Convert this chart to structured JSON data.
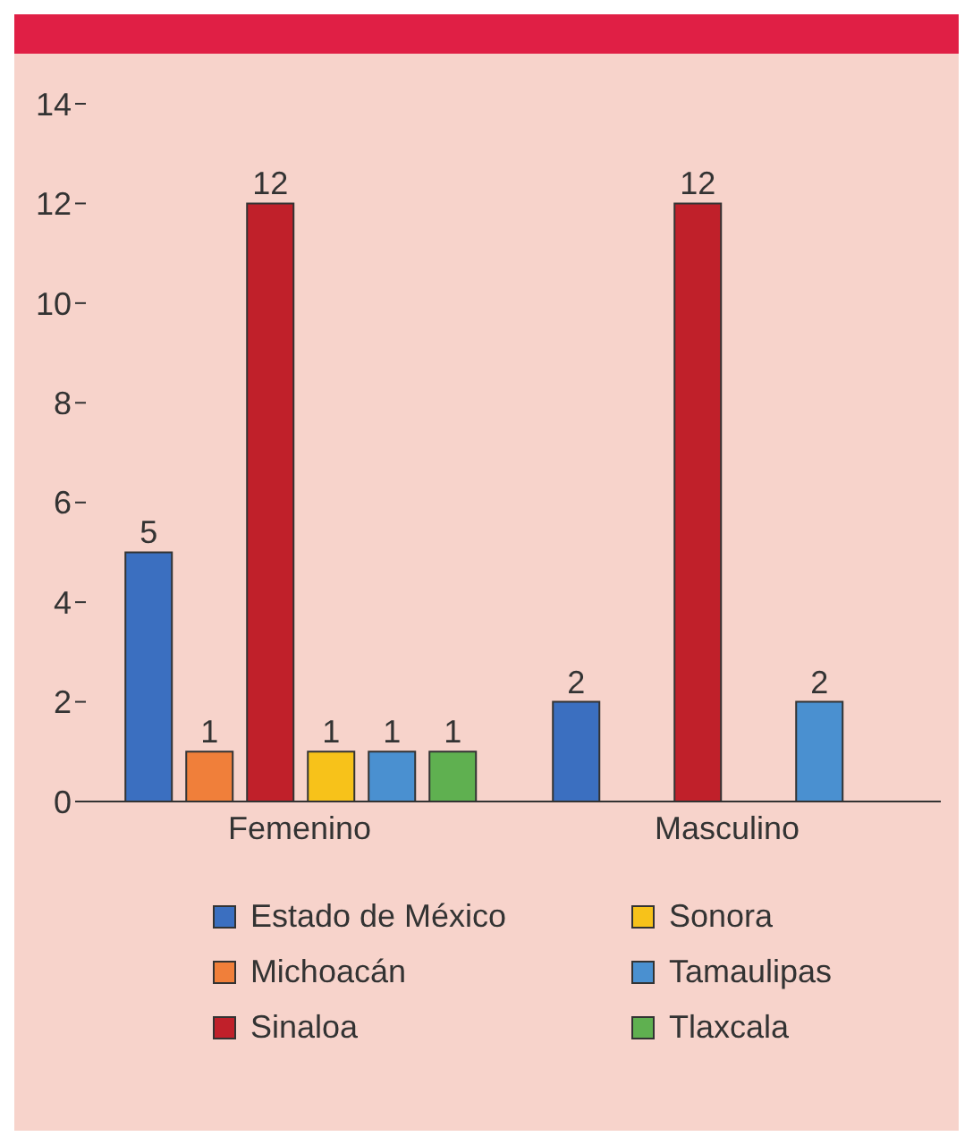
{
  "chart_data": {
    "type": "bar",
    "categories": [
      "Femenino",
      "Masculino"
    ],
    "series": [
      {
        "name": "Estado de México",
        "color": "#3b6fc0",
        "values": [
          5,
          2
        ]
      },
      {
        "name": "Michoacán",
        "color": "#f07f3a",
        "values": [
          1,
          null
        ]
      },
      {
        "name": "Sinaloa",
        "color": "#c0202a",
        "values": [
          12,
          12
        ]
      },
      {
        "name": "Sonora",
        "color": "#f7c21a",
        "values": [
          1,
          null
        ]
      },
      {
        "name": "Tamaulipas",
        "color": "#4a90d0",
        "values": [
          1,
          2
        ]
      },
      {
        "name": "Tlaxcala",
        "color": "#5fb050",
        "values": [
          1,
          null
        ]
      }
    ],
    "ylim": [
      0,
      14
    ],
    "yticks": [
      0,
      2,
      4,
      6,
      8,
      10,
      12,
      14
    ],
    "grid": false,
    "legend": "bottom",
    "data_labels": true
  }
}
